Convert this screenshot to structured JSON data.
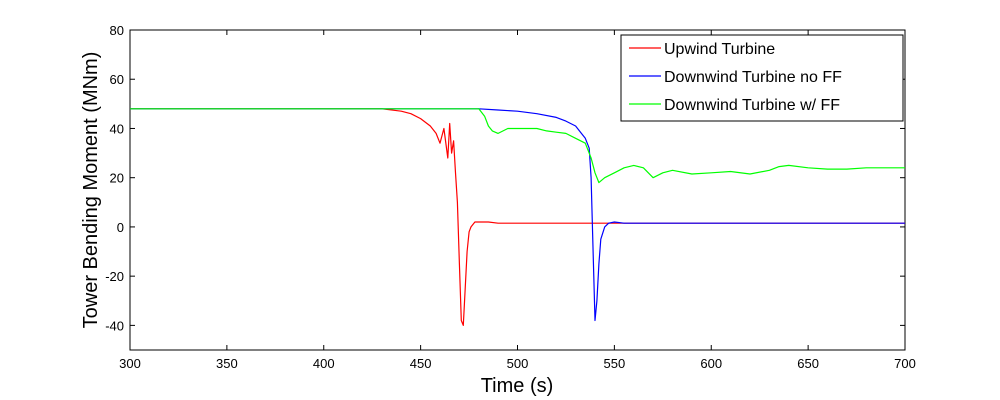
{
  "chart_data": {
    "type": "line",
    "title": "",
    "xlabel": "Time (s)",
    "ylabel": "Tower Bending Moment (MNm)",
    "xlim": [
      300,
      700
    ],
    "ylim": [
      -50,
      80
    ],
    "x_ticks": [
      300,
      350,
      400,
      450,
      500,
      550,
      600,
      650,
      700
    ],
    "y_ticks": [
      -40,
      -20,
      0,
      20,
      40,
      60,
      80
    ],
    "x_tick_labels": [
      "300",
      "350",
      "400",
      "450",
      "500",
      "550",
      "600",
      "650",
      "700"
    ],
    "y_tick_labels": [
      "-40",
      "-20",
      "0",
      "20",
      "40",
      "60",
      "80"
    ],
    "grid": false,
    "legend_position": "top-right",
    "series": [
      {
        "name": "Upwind Turbine",
        "color": "#ff0000",
        "x": [
          300,
          320,
          340,
          360,
          380,
          400,
          420,
          430,
          440,
          445,
          450,
          455,
          458,
          460,
          462,
          464,
          465,
          466,
          467,
          468,
          469,
          470,
          471,
          472,
          473,
          474,
          475,
          476,
          477,
          478,
          480,
          485,
          490,
          500,
          520,
          550,
          600,
          650,
          700
        ],
        "y": [
          48,
          48,
          48,
          48,
          48,
          48,
          48,
          48,
          47,
          46,
          44,
          41,
          38,
          34,
          40,
          28,
          42,
          30,
          35,
          22,
          10,
          -15,
          -38,
          -40,
          -25,
          -10,
          -2,
          0,
          1,
          2,
          2,
          2,
          1.5,
          1.5,
          1.5,
          1.5,
          1.5,
          1.5,
          1.5
        ]
      },
      {
        "name": "Downwind Turbine no FF",
        "color": "#0000ff",
        "x": [
          300,
          350,
          400,
          450,
          480,
          490,
          500,
          510,
          520,
          525,
          530,
          533,
          535,
          537,
          538,
          539,
          540,
          541,
          542,
          543,
          545,
          547,
          550,
          555,
          560,
          580,
          600,
          650,
          700
        ],
        "y": [
          48,
          48,
          48,
          48,
          48,
          47.5,
          47,
          46,
          44.5,
          43,
          41,
          38,
          36,
          32,
          20,
          -10,
          -38,
          -30,
          -15,
          -5,
          0,
          1.5,
          2,
          1.5,
          1.5,
          1.5,
          1.5,
          1.5,
          1.5
        ]
      },
      {
        "name": "Downwind Turbine w/ FF",
        "color": "#00ff00",
        "x": [
          300,
          350,
          400,
          450,
          480,
          483,
          485,
          487,
          490,
          495,
          500,
          505,
          510,
          515,
          520,
          525,
          530,
          535,
          538,
          540,
          542,
          545,
          550,
          555,
          560,
          565,
          570,
          575,
          580,
          590,
          600,
          610,
          620,
          630,
          635,
          640,
          650,
          660,
          670,
          680,
          690,
          700
        ],
        "y": [
          48,
          48,
          48,
          48,
          48,
          45,
          41,
          39,
          38,
          40,
          40,
          40,
          40,
          39,
          38.5,
          38,
          36,
          34,
          28,
          22,
          18,
          20,
          22,
          24,
          25,
          24,
          20,
          22,
          23,
          21.5,
          22,
          22.5,
          21.5,
          23,
          24.5,
          25,
          24,
          23.5,
          23.5,
          24,
          24,
          24
        ]
      }
    ]
  }
}
